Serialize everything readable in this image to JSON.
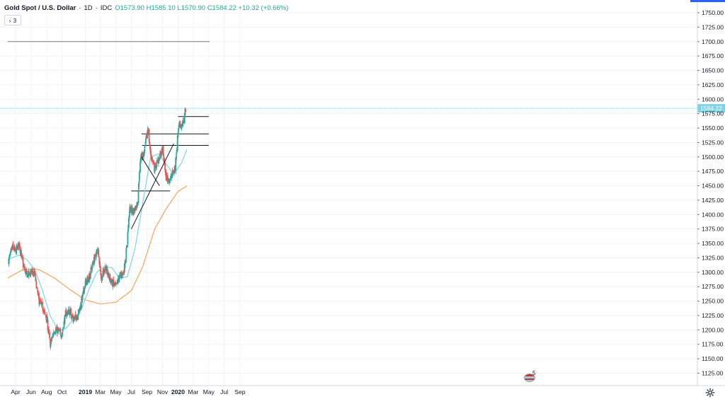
{
  "legend": {
    "symbol": "Gold Spot / U.S. Dollar",
    "interval": "1D",
    "exchange": "IDC",
    "ohlc": "O1573.90 H1585.10 L1570.90 C1584.22 +10.32 (+0.66%)",
    "collapse_label": "3"
  },
  "events_count": "5",
  "colors": {
    "up": "#26a69a",
    "down": "#ef5350",
    "ma_short": "#7fd3e8",
    "ma_long": "#f7a35c",
    "trend_lines": "#131722",
    "resistance_1700": "#787b86",
    "price_line": "#7fd3e8",
    "price_tag": "#7fd3e8"
  },
  "icons": {
    "settings": "gear-icon",
    "events": "flag-icon",
    "collapse": "chevron-right-icon"
  },
  "chart_data": {
    "type": "candlestick",
    "last_price": 1584.22,
    "last_price_label": "1584.22",
    "y_range": [
      1105,
      1760
    ],
    "y_ticks": [
      1125,
      1150,
      1175,
      1200,
      1225,
      1250,
      1275,
      1300,
      1325,
      1350,
      1375,
      1400,
      1425,
      1450,
      1475,
      1500,
      1525,
      1550,
      1575,
      1600,
      1625,
      1650,
      1675,
      1700,
      1725,
      1750
    ],
    "y_tick_labels": [
      "1125.00",
      "1150.00",
      "1175.00",
      "1200.00",
      "1225.00",
      "1250.00",
      "1275.00",
      "1300.00",
      "1325.00",
      "1350.00",
      "1375.00",
      "1400.00",
      "1425.00",
      "1450.00",
      "1475.00",
      "1500.00",
      "1525.00",
      "1550.00",
      "1575.00",
      "1600.00",
      "1625.00",
      "1650.00",
      "1675.00",
      "1700.00",
      "1725.00",
      "1750.00"
    ],
    "x_ticks": [
      {
        "date": "2018-04-01",
        "label": "Apr"
      },
      {
        "date": "2018-06-01",
        "label": "Jun"
      },
      {
        "date": "2018-08-01",
        "label": "Aug"
      },
      {
        "date": "2018-10-01",
        "label": "Oct"
      },
      {
        "date": "2019-01-01",
        "label": "2019"
      },
      {
        "date": "2019-03-01",
        "label": "Mar"
      },
      {
        "date": "2019-05-01",
        "label": "May"
      },
      {
        "date": "2019-07-01",
        "label": "Jul"
      },
      {
        "date": "2019-09-01",
        "label": "Sep"
      },
      {
        "date": "2019-11-01",
        "label": "Nov"
      },
      {
        "date": "2020-01-01",
        "label": "2020"
      },
      {
        "date": "2020-03-01",
        "label": "Mar"
      },
      {
        "date": "2020-05-01",
        "label": "May"
      },
      {
        "date": "2020-07-01",
        "label": "Jul"
      },
      {
        "date": "2020-09-01",
        "label": "Sep"
      }
    ],
    "close_path": [
      [
        "2018-03-05",
        1320
      ],
      [
        "2018-03-20",
        1345
      ],
      [
        "2018-04-01",
        1335
      ],
      [
        "2018-04-15",
        1350
      ],
      [
        "2018-05-01",
        1312
      ],
      [
        "2018-05-15",
        1295
      ],
      [
        "2018-06-01",
        1300
      ],
      [
        "2018-06-15",
        1298
      ],
      [
        "2018-07-01",
        1252
      ],
      [
        "2018-07-15",
        1240
      ],
      [
        "2018-08-01",
        1220
      ],
      [
        "2018-08-16",
        1175
      ],
      [
        "2018-09-01",
        1200
      ],
      [
        "2018-09-15",
        1198
      ],
      [
        "2018-10-01",
        1192
      ],
      [
        "2018-10-15",
        1228
      ],
      [
        "2018-11-01",
        1232
      ],
      [
        "2018-11-15",
        1218
      ],
      [
        "2018-12-01",
        1225
      ],
      [
        "2018-12-15",
        1245
      ],
      [
        "2019-01-01",
        1282
      ],
      [
        "2019-01-15",
        1290
      ],
      [
        "2019-02-01",
        1318
      ],
      [
        "2019-02-20",
        1340
      ],
      [
        "2019-03-05",
        1288
      ],
      [
        "2019-03-20",
        1310
      ],
      [
        "2019-04-01",
        1295
      ],
      [
        "2019-04-15",
        1282
      ],
      [
        "2019-05-01",
        1275
      ],
      [
        "2019-05-15",
        1292
      ],
      [
        "2019-06-01",
        1300
      ],
      [
        "2019-06-10",
        1330
      ],
      [
        "2019-06-25",
        1410
      ],
      [
        "2019-07-10",
        1405
      ],
      [
        "2019-07-25",
        1420
      ],
      [
        "2019-08-07",
        1500
      ],
      [
        "2019-08-20",
        1505
      ],
      [
        "2019-09-04",
        1550
      ],
      [
        "2019-09-15",
        1505
      ],
      [
        "2019-10-01",
        1478
      ],
      [
        "2019-10-15",
        1495
      ],
      [
        "2019-11-01",
        1512
      ],
      [
        "2019-11-15",
        1465
      ],
      [
        "2019-11-25",
        1460
      ],
      [
        "2019-12-05",
        1465
      ],
      [
        "2019-12-20",
        1480
      ],
      [
        "2020-01-03",
        1552
      ],
      [
        "2020-01-08",
        1560
      ],
      [
        "2020-01-15",
        1550
      ],
      [
        "2020-01-22",
        1560
      ],
      [
        "2020-01-31",
        1584.22
      ]
    ],
    "ma_short": [
      [
        "2018-03-01",
        1322
      ],
      [
        "2018-04-15",
        1330
      ],
      [
        "2018-05-15",
        1322
      ],
      [
        "2018-06-15",
        1305
      ],
      [
        "2018-07-15",
        1270
      ],
      [
        "2018-08-15",
        1225
      ],
      [
        "2018-09-15",
        1200
      ],
      [
        "2018-10-15",
        1202
      ],
      [
        "2018-11-15",
        1218
      ],
      [
        "2018-12-15",
        1235
      ],
      [
        "2019-01-15",
        1270
      ],
      [
        "2019-02-15",
        1300
      ],
      [
        "2019-03-15",
        1310
      ],
      [
        "2019-04-15",
        1308
      ],
      [
        "2019-05-15",
        1290
      ],
      [
        "2019-06-15",
        1292
      ],
      [
        "2019-07-15",
        1340
      ],
      [
        "2019-08-15",
        1420
      ],
      [
        "2019-09-15",
        1500
      ],
      [
        "2019-10-15",
        1505
      ],
      [
        "2019-11-15",
        1488
      ],
      [
        "2019-12-15",
        1470
      ],
      [
        "2020-01-15",
        1490
      ],
      [
        "2020-02-05",
        1513
      ]
    ],
    "ma_long": [
      [
        "2018-03-01",
        1290
      ],
      [
        "2018-05-01",
        1305
      ],
      [
        "2018-07-01",
        1305
      ],
      [
        "2018-09-01",
        1290
      ],
      [
        "2018-11-01",
        1270
      ],
      [
        "2019-01-01",
        1252
      ],
      [
        "2019-03-01",
        1245
      ],
      [
        "2019-05-01",
        1248
      ],
      [
        "2019-07-01",
        1268
      ],
      [
        "2019-08-15",
        1310
      ],
      [
        "2019-10-01",
        1375
      ],
      [
        "2019-11-15",
        1410
      ],
      [
        "2020-01-01",
        1440
      ],
      [
        "2020-02-05",
        1450
      ]
    ],
    "horizontal_lines": [
      {
        "price": 1700,
        "from": "2018-03-01",
        "to": "2020-05-05"
      },
      {
        "price": 1570,
        "from": "2020-01-01",
        "to": "2020-05-01"
      },
      {
        "price": 1540,
        "from": "2019-08-10",
        "to": "2020-05-01"
      },
      {
        "price": 1520,
        "from": "2019-08-12",
        "to": "2020-05-01"
      },
      {
        "price": 1441,
        "from": "2019-07-01",
        "to": "2019-12-01"
      }
    ],
    "trend_lines": [
      {
        "from": [
          "2019-07-01",
          1375
        ],
        "to": [
          "2019-12-15",
          1523
        ]
      },
      {
        "from": [
          "2019-08-10",
          1500
        ],
        "to": [
          "2019-10-20",
          1450
        ]
      }
    ]
  }
}
